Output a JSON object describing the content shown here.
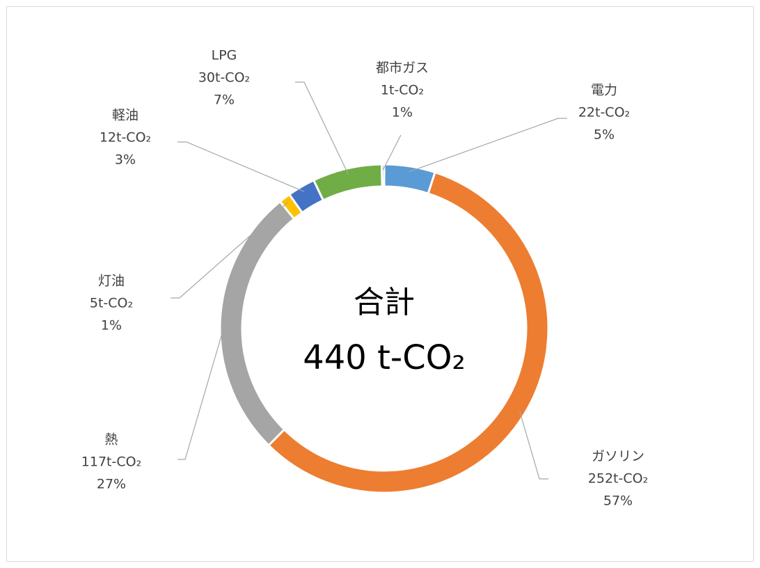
{
  "chart_data": {
    "type": "pie",
    "donut": true,
    "center_label": [
      "合計",
      "440 t-CO₂"
    ],
    "categories": [
      "電力",
      "ガソリン",
      "熱",
      "灯油",
      "軽油",
      "LPG",
      "都市ガス"
    ],
    "values": [
      22,
      252,
      117,
      5,
      12,
      30,
      1
    ],
    "value_labels": [
      "22t-CO₂",
      "252t-CO₂",
      "117t-CO₂",
      "5t-CO₂",
      "12t-CO₂",
      "30t-CO₂",
      "1t-CO₂"
    ],
    "percentages": [
      5,
      57,
      27,
      1,
      3,
      7,
      1
    ],
    "percentage_labels": [
      "5%",
      "57%",
      "27%",
      "1%",
      "3%",
      "7%",
      "1%"
    ],
    "colors": [
      "#5b9bd5",
      "#ed7d31",
      "#a5a5a5",
      "#ffc000",
      "#4472c4",
      "#70ad47",
      "#255e91"
    ]
  }
}
